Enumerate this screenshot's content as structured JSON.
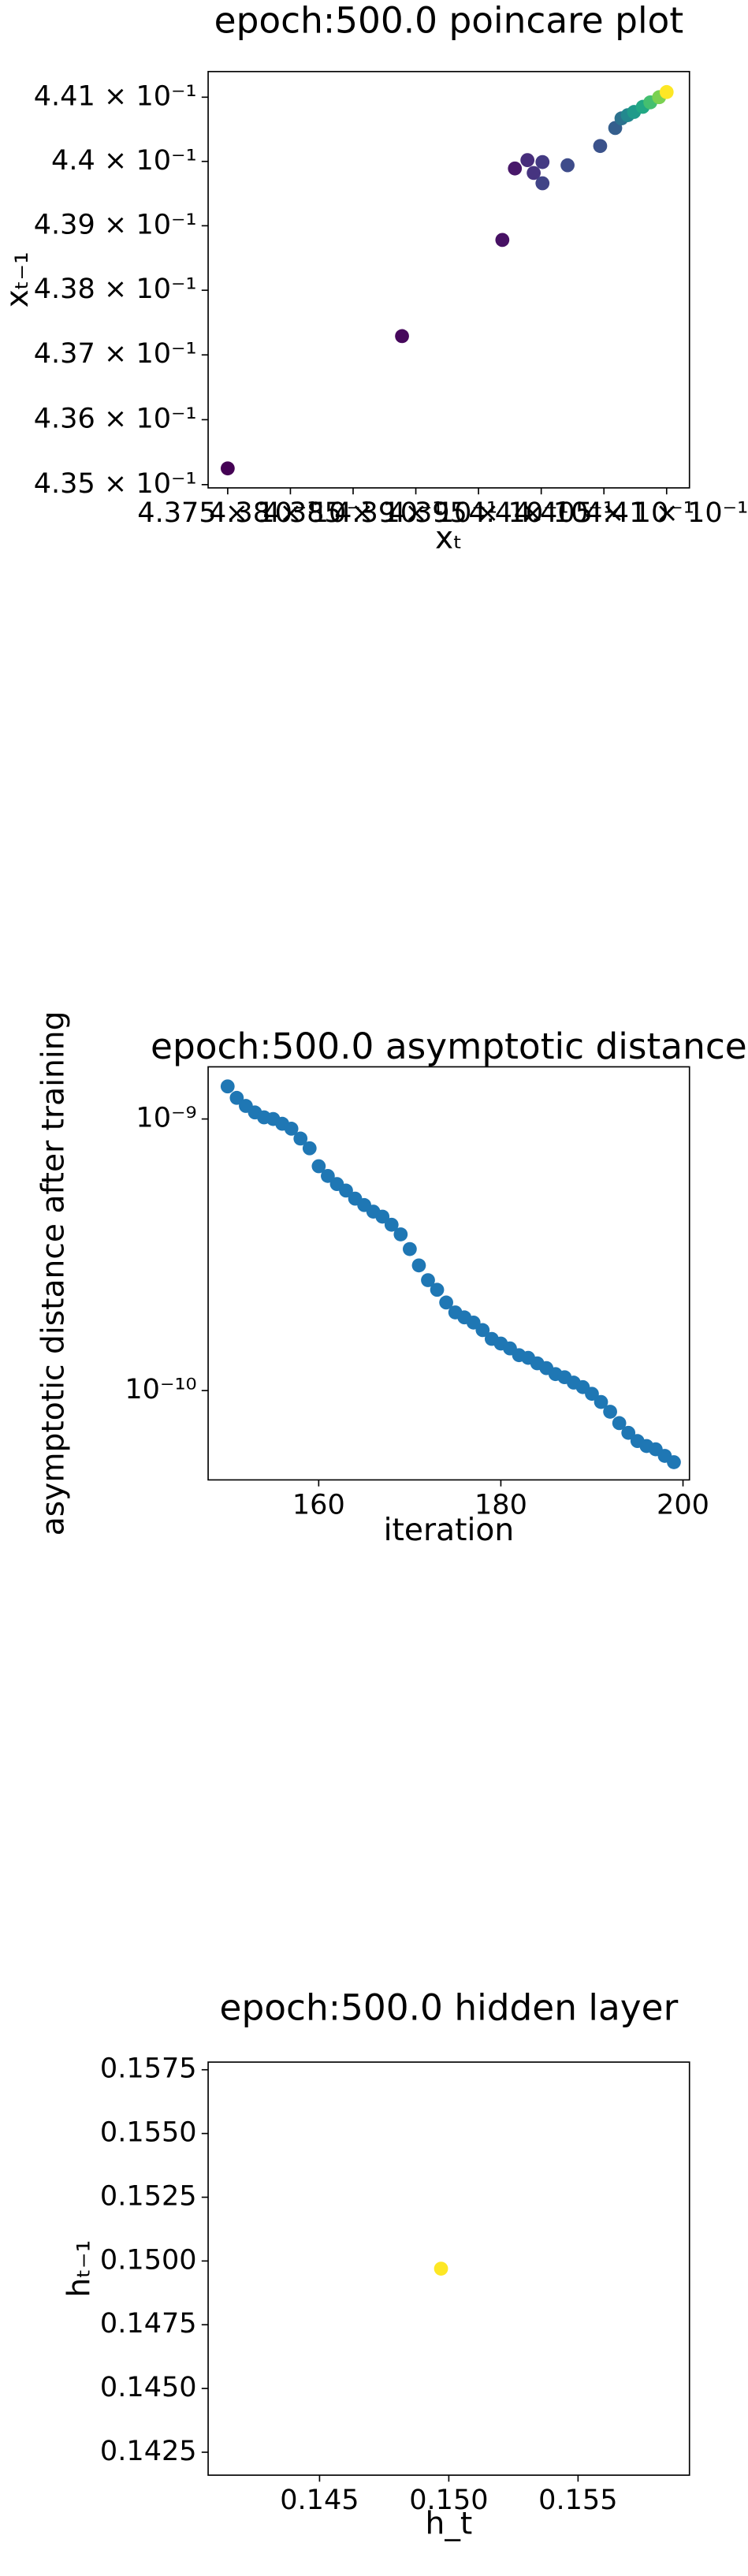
{
  "chart_data": [
    {
      "type": "scatter",
      "title": "epoch:500.0 poincare plot",
      "xlabel": "xₜ",
      "ylabel": "xₜ₋₁",
      "log_y": true,
      "x": [
        0.4375,
        0.43889,
        0.43969,
        0.43979,
        0.43989,
        0.43994,
        0.44001,
        0.44001,
        0.44021,
        0.44047,
        0.44059,
        0.44064,
        0.44069,
        0.44074,
        0.44081,
        0.44087,
        0.44094,
        0.441
      ],
      "values": [
        0.43525,
        0.43729,
        0.43878,
        0.43989,
        0.44002,
        0.43982,
        0.43999,
        0.43966,
        0.43994,
        0.44024,
        0.44052,
        0.44067,
        0.44072,
        0.44077,
        0.44085,
        0.44092,
        0.441,
        0.44108
      ],
      "colors": [
        "#440154",
        "#46085c",
        "#471164",
        "#48186a",
        "#472d7b",
        "#463480",
        "#443a83",
        "#414487",
        "#3e4c8a",
        "#3b528b",
        "#355f8d",
        "#2c728e",
        "#23888e",
        "#1f9a8a",
        "#22a884",
        "#44bf70",
        "#7ad151",
        "#fde725"
      ],
      "xlim": [
        0.437344,
        0.441182
      ],
      "ylim": [
        0.43495,
        0.4414
      ],
      "xticks": [
        {
          "value": 0.4375,
          "label": "4.375 × 10⁻¹"
        },
        {
          "value": 0.438,
          "label": "4.38 × 10⁻¹"
        },
        {
          "value": 0.4385,
          "label": "4.385 × 10⁻¹"
        },
        {
          "value": 0.439,
          "label": "4.39 × 10⁻¹"
        },
        {
          "value": 0.4395,
          "label": "4.395 × 10⁻¹"
        },
        {
          "value": 0.44,
          "label": "4.4 × 10⁻¹"
        },
        {
          "value": 0.4405,
          "label": "4.405 × 10⁻¹"
        },
        {
          "value": 0.441,
          "label": "4.41 × 10⁻¹"
        }
      ],
      "yticks": [
        {
          "value": 0.441,
          "label": "4.41 × 10⁻¹"
        },
        {
          "value": 0.44,
          "label": "4.4 × 10⁻¹"
        },
        {
          "value": 0.439,
          "label": "4.39 × 10⁻¹"
        },
        {
          "value": 0.438,
          "label": "4.38 × 10⁻¹"
        },
        {
          "value": 0.437,
          "label": "4.37 × 10⁻¹"
        },
        {
          "value": 0.436,
          "label": "4.36 × 10⁻¹"
        },
        {
          "value": 0.435,
          "label": "4.35 × 10⁻¹"
        }
      ]
    },
    {
      "type": "scatter",
      "title": "epoch:500.0 asymptotic distance",
      "xlabel": "iteration",
      "ylabel": "asymptotic distance after training",
      "log_y": true,
      "color": "#1f77b4",
      "x": [
        150,
        151,
        152,
        153,
        154,
        155,
        156,
        157,
        158,
        159,
        160,
        161,
        162,
        163,
        164,
        165,
        166,
        167,
        168,
        169,
        170,
        171,
        172,
        173,
        174,
        175,
        176,
        177,
        178,
        179,
        180,
        181,
        182,
        183,
        184,
        185,
        186,
        187,
        188,
        189,
        190,
        191,
        192,
        193,
        194,
        195,
        196,
        197,
        198,
        199
      ],
      "values": [
        1.318e-09,
        1.196e-09,
        1.117e-09,
        1.057e-09,
        1.014e-09,
        1e-09,
        9.6e-10,
        9.21e-10,
        8.47e-10,
        7.8e-10,
        6.7e-10,
        6.17e-10,
        5.76e-10,
        5.45e-10,
        5.09e-10,
        4.82e-10,
        4.56e-10,
        4.37e-10,
        4.08e-10,
        3.76e-10,
        3.32e-10,
        2.89e-10,
        2.55e-10,
        2.35e-10,
        2.11e-10,
        1.94e-10,
        1.86e-10,
        1.78e-10,
        1.67e-10,
        1.55e-10,
        1.49e-10,
        1.43e-10,
        1.35e-10,
        1.32e-10,
        1.26e-10,
        1.21e-10,
        1.15e-10,
        1.12e-10,
        1.07e-10,
        1.03e-10,
        9.73e-11,
        9.08e-11,
        8.36e-11,
        7.59e-11,
        6.99e-11,
        6.52e-11,
        6.25e-11,
        6.08e-11,
        5.75e-11,
        5.45e-11
      ],
      "xlim": [
        147.86,
        200.71
      ],
      "ylim": [
        4.69e-11,
        1.556e-09
      ],
      "xticks": [
        160,
        180,
        200
      ],
      "yticks": [
        {
          "value": 1e-09,
          "label": "10⁻⁹"
        },
        {
          "value": 1e-10,
          "label": "10⁻¹⁰"
        }
      ]
    },
    {
      "type": "scatter",
      "title": "epoch:500.0 hidden layer",
      "xlabel": "h_t",
      "ylabel": "hₜ₋₁",
      "log_y": false,
      "colors": [
        "#fde725"
      ],
      "x": [
        0.1497
      ],
      "values": [
        0.1497
      ],
      "xlim": [
        0.14069,
        0.15931
      ],
      "ylim": [
        0.1416,
        0.1578
      ],
      "xticks": [
        0.145,
        {
          "value": 0.15,
          "label": "0.150"
        },
        0.155
      ],
      "yticks": [
        0.1575,
        {
          "value": 0.155,
          "label": "0.1550"
        },
        0.1525,
        {
          "value": 0.15,
          "label": "0.1500"
        },
        0.1475,
        {
          "value": 0.145,
          "label": "0.1450"
        },
        0.1425
      ]
    }
  ]
}
